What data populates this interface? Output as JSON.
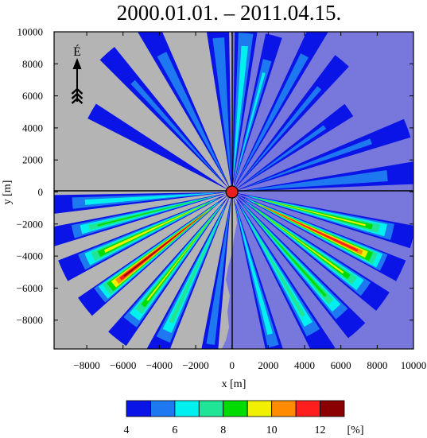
{
  "chart_data": {
    "type": "heatmap",
    "title": "2000.01.01. – 2011.04.15.",
    "xlabel": "x [m]",
    "ylabel": "y [m]",
    "xlim": [
      -9800,
      10000
    ],
    "ylim": [
      -9800,
      10000
    ],
    "x_ticks": [
      -8000,
      -6000,
      -4000,
      -2000,
      0,
      2000,
      4000,
      6000,
      8000,
      10000
    ],
    "x_tick_labels": [
      "−8000",
      "−6000",
      "−4000",
      "−2000",
      "0",
      "2000",
      "4000",
      "6000",
      "8000",
      "10000"
    ],
    "y_ticks": [
      -8000,
      -6000,
      -4000,
      -2000,
      0,
      2000,
      4000,
      6000,
      8000,
      10000
    ],
    "y_tick_labels": [
      "−8000",
      "−6000",
      "−4000",
      "−2000",
      "0",
      "2000",
      "4000",
      "6000",
      "8000",
      "10000"
    ],
    "north_label": "É",
    "source_point": [
      0,
      0
    ],
    "colorbar": {
      "levels": [
        4,
        5,
        6,
        7,
        8,
        9,
        10,
        11,
        12,
        13
      ],
      "tick_labels": [
        "4",
        "6",
        "8",
        "10",
        "12"
      ],
      "tick_values": [
        4,
        6,
        8,
        10,
        12
      ],
      "unit": "[%]",
      "colors": [
        "#0a14e6",
        "#1e78f0",
        "#00f0f0",
        "#1ee696",
        "#00dc00",
        "#f0f000",
        "#ff8c00",
        "#ff1e1e",
        "#8b0000"
      ]
    },
    "background_colors": {
      "land": "#b4b4b4",
      "water": "#7878dc",
      "source": "#e61e1e"
    },
    "sectors": [
      {
        "bearing": 355,
        "width": 8,
        "reach": 9800,
        "peak": 5.6
      },
      {
        "bearing": 5,
        "width": 8,
        "reach": 9800,
        "peak": 6.4
      },
      {
        "bearing": 15,
        "width": 6,
        "reach": 8500,
        "peak": 6.0
      },
      {
        "bearing": 28,
        "width": 6,
        "reach": 9800,
        "peak": 5.6
      },
      {
        "bearing": 40,
        "width": 6,
        "reach": 9000,
        "peak": 5.0
      },
      {
        "bearing": 55,
        "width": 6,
        "reach": 7500,
        "peak": 5.0
      },
      {
        "bearing": 70,
        "width": 6,
        "reach": 9800,
        "peak": 5.0
      },
      {
        "bearing": 84,
        "width": 7,
        "reach": 9800,
        "peak": 5.8
      },
      {
        "bearing": 333,
        "width": 7,
        "reach": 9800,
        "peak": 5.6
      },
      {
        "bearing": 318,
        "width": 6,
        "reach": 9800,
        "peak": 5.0
      },
      {
        "bearing": 300,
        "width": 6,
        "reach": 8500,
        "peak": 4.9
      },
      {
        "bearing": 104,
        "width": 7,
        "reach": 9800,
        "peak": 9.0
      },
      {
        "bearing": 115,
        "width": 7,
        "reach": 9800,
        "peak": 11.5
      },
      {
        "bearing": 126,
        "width": 7,
        "reach": 9800,
        "peak": 9.0
      },
      {
        "bearing": 138,
        "width": 7,
        "reach": 9800,
        "peak": 8.2
      },
      {
        "bearing": 150,
        "width": 7,
        "reach": 9800,
        "peak": 7.4
      },
      {
        "bearing": 165,
        "width": 6,
        "reach": 9800,
        "peak": 6.5
      },
      {
        "bearing": 188,
        "width": 6,
        "reach": 9800,
        "peak": 5.5
      },
      {
        "bearing": 205,
        "width": 7,
        "reach": 9800,
        "peak": 7.5
      },
      {
        "bearing": 218,
        "width": 7,
        "reach": 9800,
        "peak": 9.0
      },
      {
        "bearing": 232,
        "width": 7,
        "reach": 9800,
        "peak": 12.2
      },
      {
        "bearing": 245,
        "width": 7,
        "reach": 9800,
        "peak": 9.5
      },
      {
        "bearing": 256,
        "width": 6,
        "reach": 9800,
        "peak": 8.0
      },
      {
        "bearing": 266,
        "width": 6,
        "reach": 9800,
        "peak": 6.5
      }
    ]
  }
}
